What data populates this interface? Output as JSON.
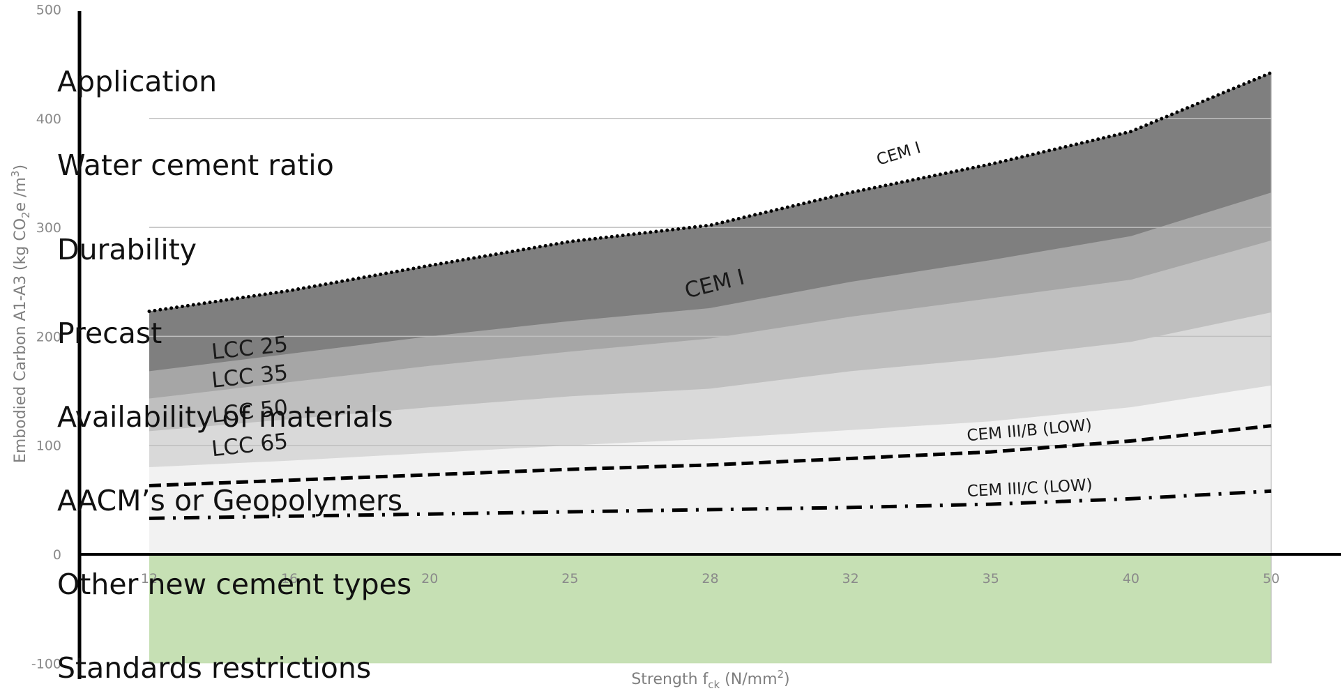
{
  "chart_data": {
    "type": "area",
    "x": [
      12,
      16,
      20,
      25,
      28,
      32,
      35,
      40,
      50
    ],
    "xlabel": "Strength f",
    "xlabel_sub": "ck",
    "xlabel_unit": " (N/mm",
    "xlabel_unit_sup": "2",
    "xlabel_close": ")",
    "ylabel": "Embodied Carbon A1-A3 (kg CO",
    "ylabel_sub": "2",
    "ylabel_unit": "e /m",
    "ylabel_unit_sup": "3",
    "ylabel_close": ")",
    "ylim": [
      -100,
      500
    ],
    "yticks": [
      "-100",
      "0",
      "100",
      "200",
      "300",
      "400",
      "500"
    ],
    "xtick_labels": [
      "12",
      "16",
      "20",
      "25",
      "28",
      "32",
      "35",
      "40",
      "50"
    ],
    "grid": true,
    "series": [
      {
        "name": "CEM I",
        "values": [
          223,
          242,
          265,
          287,
          302,
          332,
          358,
          388,
          442
        ],
        "fill": "#7f7f7f",
        "line": "dotted"
      },
      {
        "name": "LCC 25",
        "values": [
          168,
          184,
          200,
          214,
          226,
          250,
          270,
          292,
          332
        ],
        "fill": "#a6a6a6"
      },
      {
        "name": "LCC 35",
        "values": [
          143,
          158,
          173,
          186,
          198,
          218,
          235,
          252,
          288
        ],
        "fill": "#bfbfbf"
      },
      {
        "name": "LCC 50",
        "values": [
          113,
          124,
          135,
          145,
          152,
          168,
          180,
          195,
          222
        ],
        "fill": "#d9d9d9"
      },
      {
        "name": "LCC 65",
        "values": [
          80,
          86,
          93,
          100,
          106,
          114,
          122,
          135,
          155
        ],
        "fill": "#f2f2f2"
      },
      {
        "name": "CEM III/B (LOW)",
        "values": [
          63,
          68,
          73,
          78,
          82,
          88,
          94,
          104,
          118
        ],
        "line": "dashed"
      },
      {
        "name": "CEM III/C (LOW)",
        "values": [
          33,
          35,
          37,
          39,
          41,
          43,
          46,
          51,
          58
        ],
        "line": "dashdot"
      }
    ],
    "negative_region": {
      "from": 0,
      "to": -100,
      "fill": "#c6e0b4"
    },
    "annotations": [
      {
        "text": "CEM I",
        "x": 27.5,
        "y": 235,
        "rotate": -14,
        "size": 31
      },
      {
        "text": "LCC 25",
        "x": 13.8,
        "y": 179,
        "rotate": -6,
        "size": 31
      },
      {
        "text": "LCC 35",
        "x": 13.8,
        "y": 153,
        "rotate": -6,
        "size": 31
      },
      {
        "text": "LCC 50",
        "x": 13.8,
        "y": 121,
        "rotate": -6,
        "size": 31
      },
      {
        "text": "LCC 65",
        "x": 13.8,
        "y": 90,
        "rotate": -6,
        "size": 31
      },
      {
        "text": "CEM I",
        "x": 32.6,
        "y": 357,
        "rotate": -17,
        "size": 23
      },
      {
        "text": "CEM III/B (LOW)",
        "x": 34.5,
        "y": 104,
        "rotate": -5,
        "size": 23
      },
      {
        "text": "CEM III/C (LOW)",
        "x": 34.5,
        "y": 53,
        "rotate": -3,
        "size": 23
      }
    ]
  },
  "overlay_labels": [
    "Application",
    "Water cement ratio",
    "Durability",
    "Precast",
    "Availability of materials",
    "AACM’s or Geopolymers",
    "Other new cement types",
    "Standards restrictions"
  ]
}
